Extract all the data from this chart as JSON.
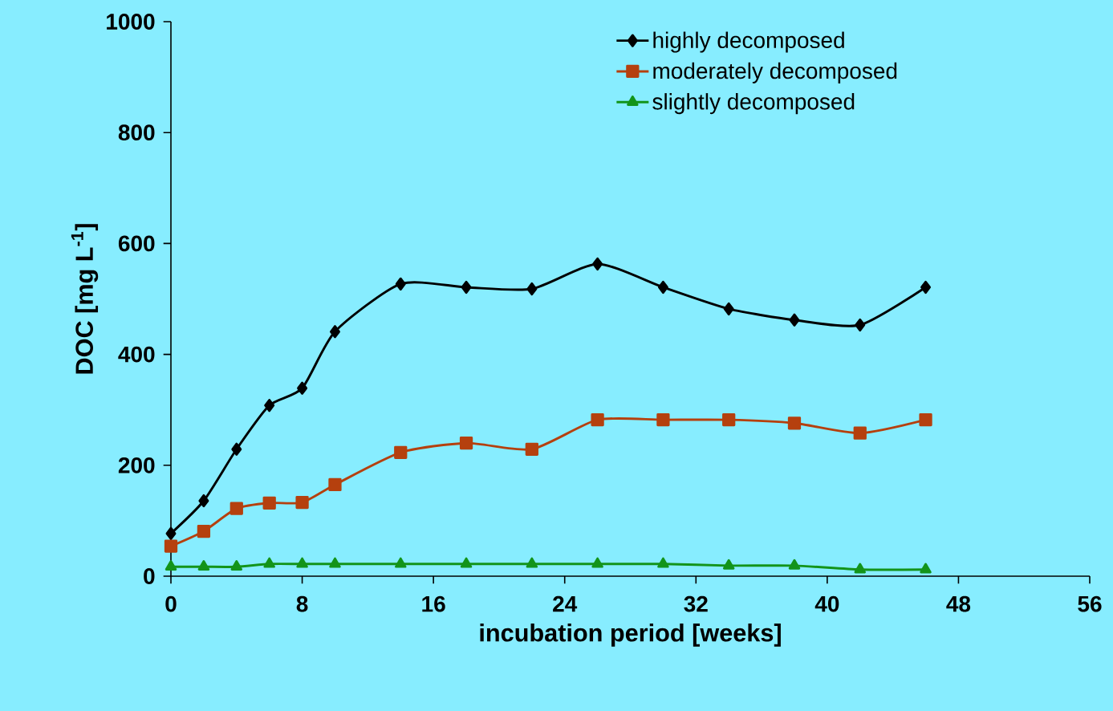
{
  "chart_data": {
    "type": "line",
    "xlabel": "incubation period [weeks]",
    "ylabel": "DOC [mg L$^{-1}$]",
    "x": [
      0,
      2,
      4,
      6,
      8,
      10,
      14,
      18,
      22,
      26,
      30,
      34,
      38,
      42,
      46
    ],
    "series": [
      {
        "name": "highly decomposed",
        "color": "#000000",
        "marker": "diamond",
        "values": [
          77,
          136,
          229,
          308,
          339,
          441,
          527,
          521,
          518,
          563,
          521,
          482,
          462,
          453,
          521
        ]
      },
      {
        "name": "moderately decomposed",
        "color": "#b5400e",
        "marker": "square",
        "values": [
          54,
          81,
          122,
          132,
          133,
          165,
          223,
          240,
          229,
          282,
          282,
          282,
          276,
          258,
          282
        ]
      },
      {
        "name": "slightly decomposed",
        "color": "#13941a",
        "marker": "triangle",
        "values": [
          17,
          17,
          17,
          22,
          22,
          22,
          22,
          22,
          22,
          22,
          22,
          19,
          19,
          12,
          12
        ]
      }
    ],
    "xlim": [
      0,
      56
    ],
    "xticks": [
      0,
      8,
      16,
      24,
      32,
      40,
      48,
      56
    ],
    "ylim": [
      0,
      1000
    ],
    "yticks": [
      0,
      200,
      400,
      600,
      800,
      1000
    ],
    "grid": false,
    "legend": "top right",
    "line_style": "solid"
  }
}
